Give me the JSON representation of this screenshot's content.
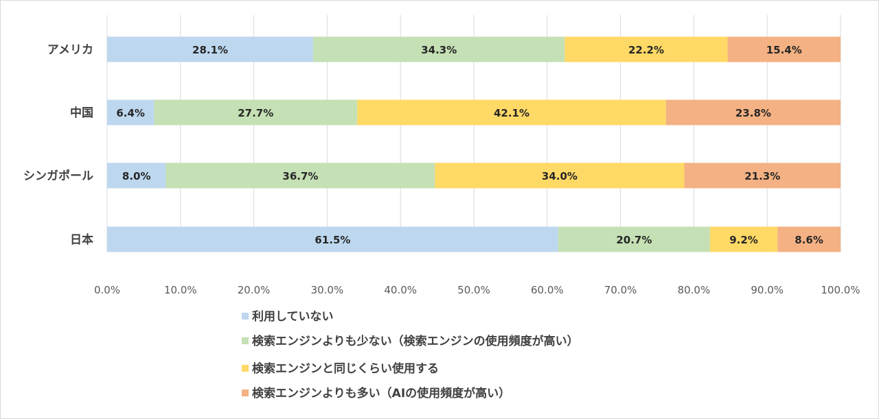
{
  "chart_data": {
    "type": "bar",
    "orientation": "horizontal",
    "stacked": true,
    "categories": [
      "アメリカ",
      "中国",
      "シンガポール",
      "日本"
    ],
    "series": [
      {
        "name": "利用していない",
        "color": "#bdd7ee",
        "values": [
          28.1,
          6.4,
          8.0,
          61.5
        ]
      },
      {
        "name": "検索エンジンよりも少ない（検索エンジンの使用頻度が高い）",
        "color": "#c5e0b4",
        "values": [
          34.3,
          27.7,
          36.7,
          20.7
        ]
      },
      {
        "name": "検索エンジンと同じくらい使用する",
        "color": "#ffd966",
        "values": [
          22.2,
          42.1,
          34.0,
          9.2
        ]
      },
      {
        "name": "検索エンジンよりも多い（AIの使用頻度が高い）",
        "color": "#f4b183",
        "values": [
          15.4,
          23.8,
          21.3,
          8.6
        ]
      }
    ],
    "data_labels": [
      [
        "28.1%",
        "6.4%",
        "8.0%",
        "61.5%"
      ],
      [
        "34.3%",
        "27.7%",
        "36.7%",
        "20.7%"
      ],
      [
        "22.2%",
        "42.1%",
        "34.0%",
        "9.2%"
      ],
      [
        "15.4%",
        "23.8%",
        "21.3%",
        "8.6%"
      ]
    ],
    "x_ticks": [
      "0.0%",
      "10.0%",
      "20.0%",
      "30.0%",
      "40.0%",
      "50.0%",
      "60.0%",
      "70.0%",
      "80.0%",
      "90.0%",
      "100.0%"
    ],
    "xlim": [
      0,
      100
    ],
    "grid": true,
    "legend_position": "bottom"
  }
}
